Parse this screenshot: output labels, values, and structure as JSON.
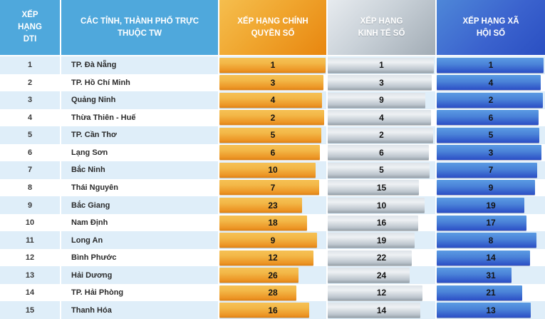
{
  "table": {
    "headers": {
      "dti_rank": "XẾP HẠNG DTI",
      "province": "CÁC TỈNH, THÀNH PHỐ TRỰC THUỘC TW",
      "digital_government": "XẾP HẠNG CHÍNH QUYỀN SỐ",
      "digital_economy": "XẾP HẠNG KINH TẾ SỐ",
      "digital_society": "XẾP HẠNG XÃ HỘI SỐ"
    },
    "rows": [
      {
        "dti_rank": 1,
        "province": "TP. Đà Nẵng",
        "gov_rank": 1,
        "econ_rank": 1,
        "soc_rank": 1
      },
      {
        "dti_rank": 2,
        "province": "TP. Hồ Chí Minh",
        "gov_rank": 3,
        "econ_rank": 3,
        "soc_rank": 4
      },
      {
        "dti_rank": 3,
        "province": "Quảng Ninh",
        "gov_rank": 4,
        "econ_rank": 9,
        "soc_rank": 2
      },
      {
        "dti_rank": 4,
        "province": "Thừa Thiên - Huế",
        "gov_rank": 2,
        "econ_rank": 4,
        "soc_rank": 6
      },
      {
        "dti_rank": 5,
        "province": "TP. Cần Thơ",
        "gov_rank": 5,
        "econ_rank": 2,
        "soc_rank": 5
      },
      {
        "dti_rank": 6,
        "province": "Lạng Sơn",
        "gov_rank": 6,
        "econ_rank": 6,
        "soc_rank": 3
      },
      {
        "dti_rank": 7,
        "province": "Bắc Ninh",
        "gov_rank": 10,
        "econ_rank": 5,
        "soc_rank": 7
      },
      {
        "dti_rank": 8,
        "province": "Thái Nguyên",
        "gov_rank": 7,
        "econ_rank": 15,
        "soc_rank": 9
      },
      {
        "dti_rank": 9,
        "province": "Bắc Giang",
        "gov_rank": 23,
        "econ_rank": 10,
        "soc_rank": 19
      },
      {
        "dti_rank": 10,
        "province": "Nam Định",
        "gov_rank": 18,
        "econ_rank": 16,
        "soc_rank": 17
      },
      {
        "dti_rank": 11,
        "province": "Long An",
        "gov_rank": 9,
        "econ_rank": 19,
        "soc_rank": 8
      },
      {
        "dti_rank": 12,
        "province": "Bình Phước",
        "gov_rank": 12,
        "econ_rank": 22,
        "soc_rank": 14
      },
      {
        "dti_rank": 13,
        "province": "Hải Dương",
        "gov_rank": 26,
        "econ_rank": 24,
        "soc_rank": 31
      },
      {
        "dti_rank": 14,
        "province": "TP. Hải Phòng",
        "gov_rank": 28,
        "econ_rank": 12,
        "soc_rank": 21
      },
      {
        "dti_rank": 15,
        "province": "Thanh Hóa",
        "gov_rank": 16,
        "econ_rank": 14,
        "soc_rank": 13
      }
    ]
  },
  "colors": {
    "header_blue": "#4FA8DC",
    "row_stripe": "#DFEEF9",
    "gov_bar_light": "#F6C155",
    "gov_bar_dark": "#E8860F",
    "econ_bar_light": "#EEF1F4",
    "econ_bar_dark": "#97A1AA",
    "soc_bar_light": "#5B9BE3",
    "soc_bar_dark": "#2B4EC5"
  },
  "chart_data": {
    "type": "table",
    "title": "Xếp hạng DTI các tỉnh, thành phố trực thuộc TW",
    "columns": [
      "XẾP HẠNG DTI",
      "CÁC TỈNH, THÀNH PHỐ TRỰC THUỘC TW",
      "XẾP HẠNG CHÍNH QUYỀN SỐ",
      "XẾP HẠNG KINH TẾ SỐ",
      "XẾP HẠNG XÃ HỘI SỐ"
    ],
    "categories": [
      "TP. Đà Nẵng",
      "TP. Hồ Chí Minh",
      "Quảng Ninh",
      "Thừa Thiên - Huế",
      "TP. Cần Thơ",
      "Lạng Sơn",
      "Bắc Ninh",
      "Thái Nguyên",
      "Bắc Giang",
      "Nam Định",
      "Long An",
      "Bình Phước",
      "Hải Dương",
      "TP. Hải Phòng",
      "Thanh Hóa"
    ],
    "dti_rank": [
      1,
      2,
      3,
      4,
      5,
      6,
      7,
      8,
      9,
      10,
      11,
      12,
      13,
      14,
      15
    ],
    "series": [
      {
        "name": "XẾP HẠNG CHÍNH QUYỀN SỐ",
        "values": [
          1,
          3,
          4,
          2,
          5,
          6,
          10,
          7,
          23,
          18,
          9,
          12,
          26,
          28,
          16
        ],
        "color": "#EE9424"
      },
      {
        "name": "XẾP HẠNG KINH TẾ SỐ",
        "values": [
          1,
          3,
          9,
          4,
          2,
          6,
          5,
          15,
          10,
          16,
          19,
          22,
          24,
          12,
          14
        ],
        "color": "#BCC5CD"
      },
      {
        "name": "XẾP HẠNG XÃ HỘI SỐ",
        "values": [
          1,
          4,
          2,
          6,
          5,
          3,
          7,
          9,
          19,
          17,
          8,
          14,
          31,
          21,
          13
        ],
        "color": "#3B63CE"
      }
    ],
    "layout_hints": {
      "bars": "horizontal, lower rank = longer bar, width% ≈ 100 - rank",
      "grid": false,
      "legend": false
    }
  }
}
